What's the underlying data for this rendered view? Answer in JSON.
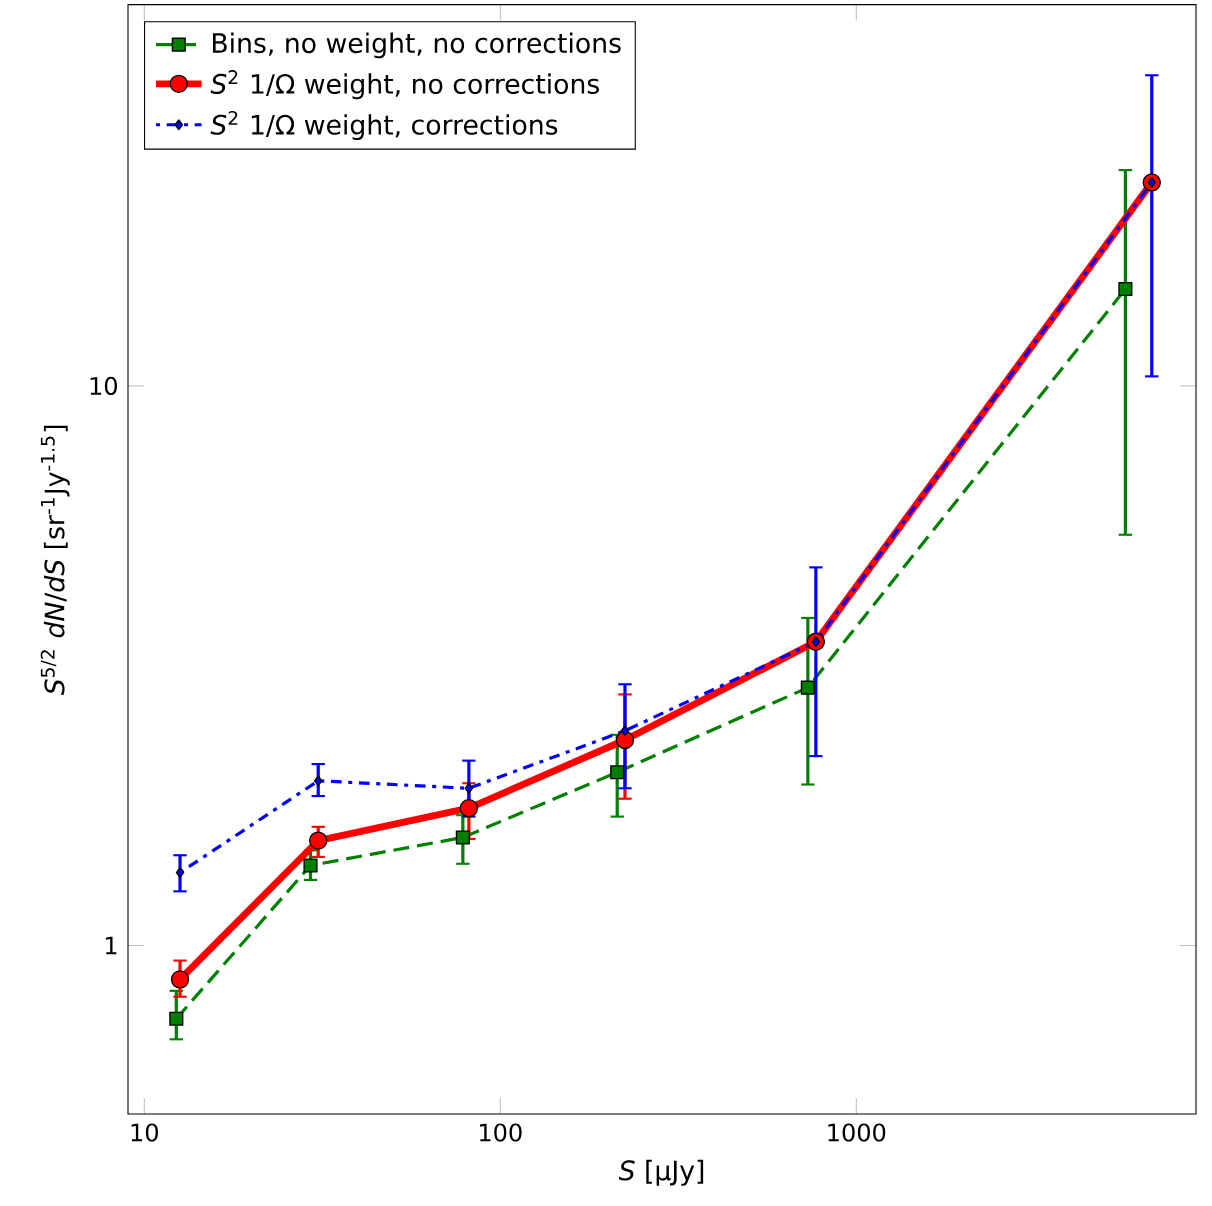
{
  "chart_data": {
    "type": "line",
    "xlabel": "*S* [μJy]",
    "ylabel": "*S*$^{5/2}$ *dN*/*dS* [sr$^{-1}$Jy$^{-1.5}$]",
    "log": "xy",
    "xlim": [
      9,
      9000
    ],
    "ylim": [
      0.5,
      48
    ],
    "xticks": [
      10,
      100,
      1000
    ],
    "yticks": [
      1,
      10
    ],
    "legend": "top left",
    "series": [
      {
        "name": "Bins, no weight, no corrections",
        "color": "#007f00",
        "marker": "square",
        "line_style": "dashed",
        "x": [
          12.3,
          29.3,
          78.5,
          213,
          731,
          5700
        ],
        "values": [
          0.74,
          1.39,
          1.56,
          2.04,
          2.89,
          14.9
        ],
        "errors": [
          [
            0.68,
            0.83
          ],
          [
            1.31,
            1.48
          ],
          [
            1.4,
            1.71
          ],
          [
            1.7,
            2.38
          ],
          [
            1.94,
            3.85
          ],
          [
            5.42,
            24.3
          ]
        ]
      },
      {
        "name": "*S*$^{2}$ 1/Ω weight, no corrections",
        "color": "#ff0000",
        "marker": "circle",
        "line_style": "solid",
        "x": [
          12.6,
          30.8,
          81.6,
          224,
          770,
          6760
        ],
        "values": [
          0.87,
          1.54,
          1.76,
          2.33,
          3.49,
          23.1
        ],
        "errors": [
          [
            0.81,
            0.94
          ],
          [
            1.44,
            1.63
          ],
          [
            1.55,
            1.95
          ],
          [
            1.83,
            2.81
          ],
          null,
          null
        ]
      },
      {
        "name": "*S*$^{2}$ 1/Ω weight, corrections",
        "color": "#0000ff",
        "marker": "diamond",
        "line_style": "dotted",
        "x": [
          12.6,
          30.8,
          81.6,
          224,
          770,
          6760
        ],
        "values": [
          1.35,
          1.97,
          1.91,
          2.42,
          3.49,
          23.1
        ],
        "errors": [
          [
            1.25,
            1.45
          ],
          [
            1.85,
            2.11
          ],
          [
            1.7,
            2.14
          ],
          [
            1.91,
            2.93
          ],
          [
            2.18,
            4.74
          ],
          [
            10.4,
            35.9
          ]
        ]
      }
    ]
  }
}
